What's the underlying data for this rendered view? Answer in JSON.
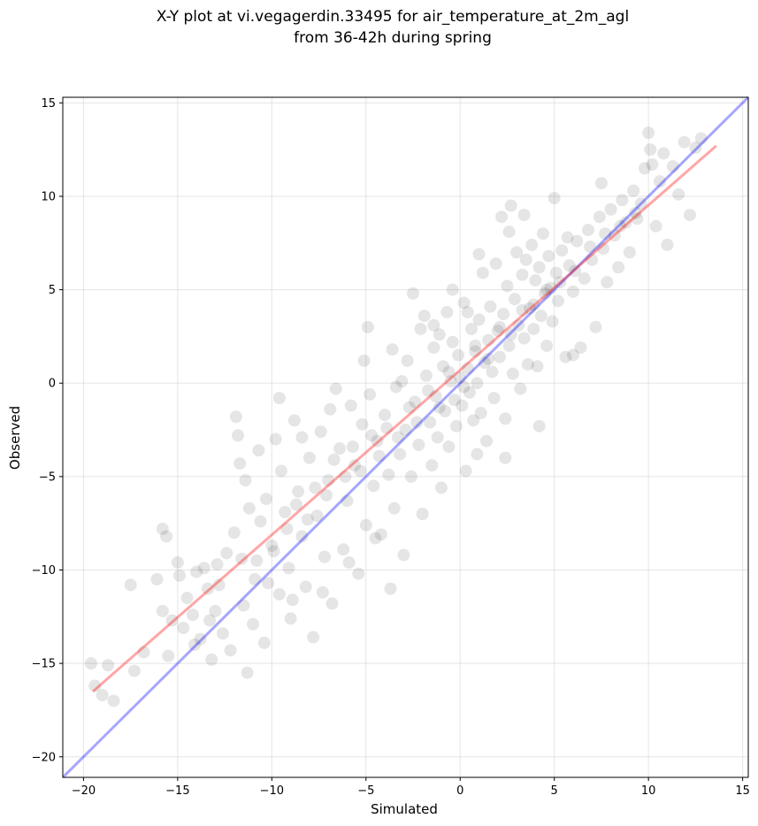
{
  "chart_data": {
    "type": "scatter",
    "title": [
      "X-Y plot at vi.vegagerdin.33495 for air_temperature_at_2m_agl",
      "from 36-42h during spring"
    ],
    "xlabel": "Simulated",
    "ylabel": "Observed",
    "xlim": [
      -21.1,
      15.3
    ],
    "ylim": [
      -21.1,
      15.3
    ],
    "xticks": [
      -20,
      -15,
      -10,
      -5,
      0,
      5,
      10,
      15
    ],
    "yticks": [
      -20,
      -15,
      -10,
      -5,
      0,
      5,
      10,
      15
    ],
    "xtick_labels": [
      "−20",
      "−15",
      "−10",
      "−5",
      "0",
      "5",
      "10",
      "15"
    ],
    "ytick_labels": [
      "−20",
      "−15",
      "−10",
      "−5",
      "0",
      "5",
      "10",
      "15"
    ],
    "grid": true,
    "point_color": "#000000",
    "point_alpha": 0.1,
    "identity_line": {
      "color": "#0000ff",
      "from": [
        -21.1,
        -21.1
      ],
      "to": [
        15.3,
        15.3
      ]
    },
    "fit_line": {
      "color": "#ff0000",
      "from": [
        -19.5,
        -16.5
      ],
      "to": [
        13.6,
        12.7
      ]
    },
    "series": [
      {
        "points": [
          [
            -19.6,
            -15.0
          ],
          [
            -19.4,
            -16.2
          ],
          [
            -19.0,
            -16.7
          ],
          [
            -18.7,
            -15.1
          ],
          [
            -18.4,
            -17.0
          ],
          [
            -17.3,
            -15.4
          ],
          [
            -16.1,
            -10.5
          ],
          [
            -15.8,
            -7.8
          ],
          [
            -15.6,
            -8.2
          ],
          [
            -15.3,
            -12.7
          ],
          [
            -15.5,
            -14.6
          ],
          [
            -15.0,
            -9.6
          ],
          [
            -14.9,
            -10.3
          ],
          [
            -14.7,
            -13.1
          ],
          [
            -14.5,
            -11.5
          ],
          [
            -14.2,
            -12.4
          ],
          [
            -14.0,
            -10.1
          ],
          [
            -13.8,
            -13.7
          ],
          [
            -13.6,
            -9.9
          ],
          [
            -13.4,
            -11.0
          ],
          [
            -13.2,
            -14.8
          ],
          [
            -13.0,
            -12.2
          ],
          [
            -12.8,
            -10.8
          ],
          [
            -12.6,
            -13.4
          ],
          [
            -12.4,
            -9.1
          ],
          [
            -12.2,
            -14.3
          ],
          [
            -12.0,
            -8.0
          ],
          [
            -11.9,
            -1.8
          ],
          [
            -11.8,
            -2.8
          ],
          [
            -11.7,
            -4.3
          ],
          [
            -11.5,
            -11.9
          ],
          [
            -11.3,
            -15.5
          ],
          [
            -11.2,
            -6.7
          ],
          [
            -11.0,
            -12.9
          ],
          [
            -10.8,
            -9.5
          ],
          [
            -10.6,
            -7.4
          ],
          [
            -10.4,
            -13.9
          ],
          [
            -10.2,
            -10.7
          ],
          [
            -10.0,
            -8.7
          ],
          [
            -9.8,
            -3.0
          ],
          [
            -9.6,
            -11.3
          ],
          [
            -9.5,
            -4.7
          ],
          [
            -9.3,
            -6.9
          ],
          [
            -9.1,
            -9.9
          ],
          [
            -9.0,
            -12.6
          ],
          [
            -8.8,
            -2.0
          ],
          [
            -8.6,
            -5.8
          ],
          [
            -8.4,
            -8.2
          ],
          [
            -8.2,
            -10.9
          ],
          [
            -8.0,
            -4.0
          ],
          [
            -7.8,
            -13.6
          ],
          [
            -7.6,
            -7.1
          ],
          [
            -7.4,
            -2.6
          ],
          [
            -7.2,
            -9.3
          ],
          [
            -7.0,
            -5.2
          ],
          [
            -6.8,
            -11.8
          ],
          [
            -6.6,
            -0.3
          ],
          [
            -6.4,
            -3.5
          ],
          [
            -6.2,
            -8.9
          ],
          [
            -6.0,
            -6.3
          ],
          [
            -5.8,
            -1.2
          ],
          [
            -5.6,
            -4.4
          ],
          [
            -5.4,
            -10.2
          ],
          [
            -5.2,
            -2.2
          ],
          [
            -5.0,
            -7.6
          ],
          [
            -4.9,
            3.0
          ],
          [
            -4.8,
            -0.6
          ],
          [
            -4.6,
            -5.5
          ],
          [
            -4.4,
            -3.1
          ],
          [
            -4.2,
            -8.1
          ],
          [
            -4.0,
            -1.7
          ],
          [
            -3.8,
            -4.9
          ],
          [
            -3.6,
            1.8
          ],
          [
            -3.5,
            -6.7
          ],
          [
            -3.4,
            -0.2
          ],
          [
            -3.2,
            -3.8
          ],
          [
            -3.0,
            -9.2
          ],
          [
            -2.9,
            -2.5
          ],
          [
            -2.8,
            1.2
          ],
          [
            -2.6,
            -5.0
          ],
          [
            -2.5,
            4.8
          ],
          [
            -2.4,
            -1.0
          ],
          [
            -2.2,
            -3.3
          ],
          [
            -2.0,
            -7.0
          ],
          [
            -1.9,
            3.6
          ],
          [
            -1.8,
            0.4
          ],
          [
            -1.6,
            -2.1
          ],
          [
            -1.5,
            -4.4
          ],
          [
            -1.4,
            1.9
          ],
          [
            -1.3,
            -0.7
          ],
          [
            -1.2,
            -2.9
          ],
          [
            -1.1,
            2.6
          ],
          [
            -1.0,
            -5.6
          ],
          [
            -0.9,
            0.9
          ],
          [
            -0.8,
            -1.5
          ],
          [
            -0.7,
            3.8
          ],
          [
            -0.6,
            -3.4
          ],
          [
            -0.5,
            0.1
          ],
          [
            -0.4,
            2.2
          ],
          [
            -0.3,
            -0.9
          ],
          [
            -0.2,
            -2.3
          ],
          [
            -0.1,
            1.5
          ],
          [
            0.0,
            0.3
          ],
          [
            0.1,
            -1.2
          ],
          [
            0.2,
            4.3
          ],
          [
            0.3,
            -4.7
          ],
          [
            0.4,
            0.8
          ],
          [
            0.5,
            -0.5
          ],
          [
            0.6,
            2.9
          ],
          [
            0.7,
            -2.0
          ],
          [
            0.8,
            1.7
          ],
          [
            0.9,
            0.0
          ],
          [
            1.0,
            3.4
          ],
          [
            1.1,
            -1.6
          ],
          [
            1.2,
            5.9
          ],
          [
            1.3,
            1.1
          ],
          [
            1.4,
            -3.1
          ],
          [
            1.5,
            2.3
          ],
          [
            1.6,
            4.1
          ],
          [
            1.7,
            0.6
          ],
          [
            1.8,
            -0.8
          ],
          [
            1.9,
            6.4
          ],
          [
            2.0,
            2.8
          ],
          [
            2.1,
            1.4
          ],
          [
            2.2,
            8.9
          ],
          [
            2.3,
            3.7
          ],
          [
            2.4,
            -1.9
          ],
          [
            2.5,
            5.2
          ],
          [
            2.6,
            2.0
          ],
          [
            2.7,
            9.5
          ],
          [
            2.8,
            0.5
          ],
          [
            2.9,
            4.5
          ],
          [
            3.0,
            7.0
          ],
          [
            3.1,
            3.1
          ],
          [
            3.2,
            -0.3
          ],
          [
            3.3,
            5.8
          ],
          [
            3.4,
            2.4
          ],
          [
            3.5,
            6.6
          ],
          [
            3.6,
            1.0
          ],
          [
            3.7,
            4.0
          ],
          [
            3.8,
            7.4
          ],
          [
            3.9,
            2.9
          ],
          [
            4.0,
            5.5
          ],
          [
            4.1,
            0.9
          ],
          [
            4.2,
            6.2
          ],
          [
            4.3,
            3.6
          ],
          [
            4.4,
            8.0
          ],
          [
            4.5,
            4.8
          ],
          [
            4.6,
            2.0
          ],
          [
            4.7,
            6.8
          ],
          [
            4.8,
            5.1
          ],
          [
            4.9,
            3.3
          ],
          [
            5.0,
            9.9
          ],
          [
            5.1,
            5.9
          ],
          [
            5.2,
            4.4
          ],
          [
            5.4,
            7.1
          ],
          [
            5.6,
            1.4
          ],
          [
            5.8,
            6.3
          ],
          [
            6.0,
            4.9
          ],
          [
            6.2,
            7.6
          ],
          [
            6.4,
            1.9
          ],
          [
            6.6,
            5.6
          ],
          [
            6.8,
            8.2
          ],
          [
            7.0,
            6.6
          ],
          [
            7.2,
            3.0
          ],
          [
            7.4,
            8.9
          ],
          [
            7.5,
            10.7
          ],
          [
            7.6,
            7.2
          ],
          [
            7.8,
            5.4
          ],
          [
            8.0,
            9.3
          ],
          [
            8.2,
            7.9
          ],
          [
            8.4,
            6.2
          ],
          [
            8.6,
            9.8
          ],
          [
            8.8,
            8.6
          ],
          [
            9.0,
            7.0
          ],
          [
            9.2,
            10.3
          ],
          [
            9.4,
            8.8
          ],
          [
            9.6,
            9.6
          ],
          [
            9.8,
            11.5
          ],
          [
            10.0,
            13.4
          ],
          [
            10.1,
            12.5
          ],
          [
            10.2,
            11.7
          ],
          [
            10.4,
            8.4
          ],
          [
            10.6,
            10.8
          ],
          [
            10.8,
            12.3
          ],
          [
            11.0,
            7.4
          ],
          [
            11.3,
            11.6
          ],
          [
            11.6,
            10.1
          ],
          [
            11.9,
            12.9
          ],
          [
            12.2,
            9.0
          ],
          [
            12.5,
            12.6
          ],
          [
            12.8,
            13.1
          ],
          [
            -15.8,
            -12.2
          ],
          [
            -14.1,
            -14.0
          ],
          [
            -13.3,
            -12.7
          ],
          [
            -12.9,
            -9.7
          ],
          [
            -11.6,
            -9.4
          ],
          [
            -10.9,
            -10.5
          ],
          [
            -10.3,
            -6.2
          ],
          [
            -9.9,
            -9.0
          ],
          [
            -9.2,
            -7.8
          ],
          [
            -8.7,
            -6.5
          ],
          [
            -8.1,
            -7.3
          ],
          [
            -7.7,
            -5.6
          ],
          [
            -7.1,
            -6.0
          ],
          [
            -6.7,
            -4.1
          ],
          [
            -6.1,
            -5.0
          ],
          [
            -5.7,
            -3.4
          ],
          [
            -5.3,
            -4.7
          ],
          [
            -4.7,
            -2.8
          ],
          [
            -4.3,
            -3.9
          ],
          [
            -3.9,
            -2.4
          ],
          [
            -3.3,
            -2.9
          ],
          [
            -2.7,
            -1.3
          ],
          [
            -2.3,
            -2.1
          ],
          [
            -1.7,
            -0.4
          ],
          [
            -1.1,
            -1.3
          ],
          [
            -0.6,
            0.6
          ],
          [
            0.2,
            -0.2
          ],
          [
            0.8,
            2.0
          ],
          [
            1.5,
            1.3
          ],
          [
            2.1,
            3.0
          ],
          [
            2.7,
            2.6
          ],
          [
            3.3,
            3.9
          ],
          [
            3.9,
            4.2
          ],
          [
            4.6,
            5.0
          ],
          [
            5.3,
            5.4
          ],
          [
            6.1,
            6.0
          ],
          [
            6.9,
            7.3
          ],
          [
            7.7,
            8.0
          ],
          [
            8.5,
            8.4
          ],
          [
            9.3,
            9.1
          ],
          [
            -17.5,
            -10.8
          ],
          [
            -16.8,
            -14.4
          ],
          [
            -3.7,
            -11.0
          ],
          [
            -4.5,
            -8.3
          ],
          [
            -5.9,
            -9.6
          ],
          [
            -7.3,
            -11.2
          ],
          [
            -8.9,
            -11.6
          ],
          [
            0.9,
            -3.8
          ],
          [
            2.4,
            -4.0
          ],
          [
            4.2,
            -2.3
          ],
          [
            6.0,
            1.5
          ],
          [
            -2.1,
            2.9
          ],
          [
            -0.4,
            5.0
          ],
          [
            1.0,
            6.9
          ],
          [
            2.6,
            8.1
          ],
          [
            3.4,
            9.0
          ],
          [
            -9.6,
            -0.8
          ],
          [
            -8.4,
            -2.9
          ],
          [
            -6.9,
            -1.4
          ],
          [
            -5.1,
            1.2
          ],
          [
            -3.1,
            0.1
          ],
          [
            -1.4,
            3.1
          ],
          [
            0.4,
            3.8
          ],
          [
            5.7,
            7.8
          ],
          [
            -11.4,
            -5.2
          ],
          [
            -10.7,
            -3.6
          ]
        ]
      }
    ]
  }
}
